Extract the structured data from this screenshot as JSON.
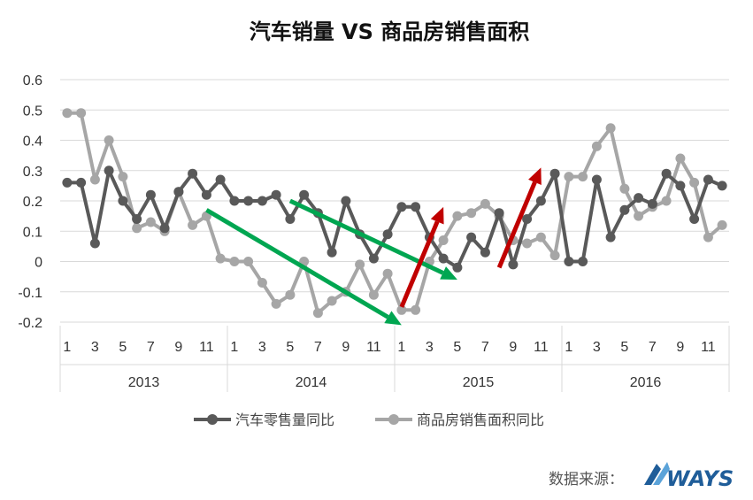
{
  "chart_data": {
    "type": "line",
    "title": "汽车销量 VS 商品房销售面积",
    "ylim": [
      -0.2,
      0.6
    ],
    "yticks": [
      "0.6",
      "0.5",
      "0.4",
      "0.3",
      "0.2",
      "0.1",
      "0",
      "-0.1",
      "-0.2"
    ],
    "ytick_values": [
      0.6,
      0.5,
      0.4,
      0.3,
      0.2,
      0.1,
      0,
      -0.1,
      -0.2
    ],
    "month_labels": [
      "1",
      "",
      "3",
      "",
      "5",
      "",
      "7",
      "",
      "9",
      "",
      "11",
      ""
    ],
    "years": [
      "2013",
      "2014",
      "2015",
      "2016"
    ],
    "series": [
      {
        "name": "汽车零售量同比",
        "color": "#595959",
        "values": [
          0.26,
          0.26,
          0.06,
          0.3,
          0.2,
          0.14,
          0.22,
          0.11,
          0.23,
          0.29,
          0.22,
          0.27,
          0.2,
          0.2,
          0.2,
          0.22,
          0.14,
          0.22,
          0.16,
          0.03,
          0.2,
          0.09,
          0.01,
          0.09,
          0.18,
          0.18,
          0.08,
          0.01,
          -0.02,
          0.08,
          0.03,
          0.16,
          -0.01,
          0.14,
          0.2,
          0.29,
          0.0,
          0.0,
          0.27,
          0.08,
          0.17,
          0.21,
          0.19,
          0.29,
          0.25,
          0.14,
          0.27,
          0.25
        ]
      },
      {
        "name": "商品房销售面积同比",
        "color": "#a6a6a6",
        "values": [
          0.49,
          0.49,
          0.27,
          0.4,
          0.28,
          0.11,
          0.13,
          0.1,
          0.23,
          0.12,
          0.15,
          0.01,
          0.0,
          0.0,
          -0.07,
          -0.14,
          -0.11,
          0.0,
          -0.17,
          -0.13,
          -0.1,
          -0.01,
          -0.11,
          -0.04,
          -0.16,
          -0.16,
          0.0,
          0.07,
          0.15,
          0.16,
          0.19,
          0.15,
          0.07,
          0.06,
          0.08,
          0.02,
          0.28,
          0.28,
          0.38,
          0.44,
          0.24,
          0.15,
          0.18,
          0.2,
          0.34,
          0.26,
          0.08,
          0.12
        ]
      }
    ],
    "annotations": [
      {
        "type": "arrow",
        "color": "#00a651",
        "from": {
          "index": 10,
          "value": 0.17
        },
        "to": {
          "index": 24,
          "value": -0.21
        }
      },
      {
        "type": "arrow",
        "color": "#00a651",
        "from": {
          "index": 16,
          "value": 0.2
        },
        "to": {
          "index": 28,
          "value": -0.06
        }
      },
      {
        "type": "arrow",
        "color": "#c00000",
        "from": {
          "index": 24,
          "value": -0.15
        },
        "to": {
          "index": 27,
          "value": 0.18
        }
      },
      {
        "type": "arrow",
        "color": "#c00000",
        "from": {
          "index": 31,
          "value": -0.02
        },
        "to": {
          "index": 34,
          "value": 0.31
        }
      }
    ],
    "grid": true,
    "legend_position": "bottom"
  },
  "source": {
    "label": "数据来源：",
    "brand": "WAYS"
  }
}
